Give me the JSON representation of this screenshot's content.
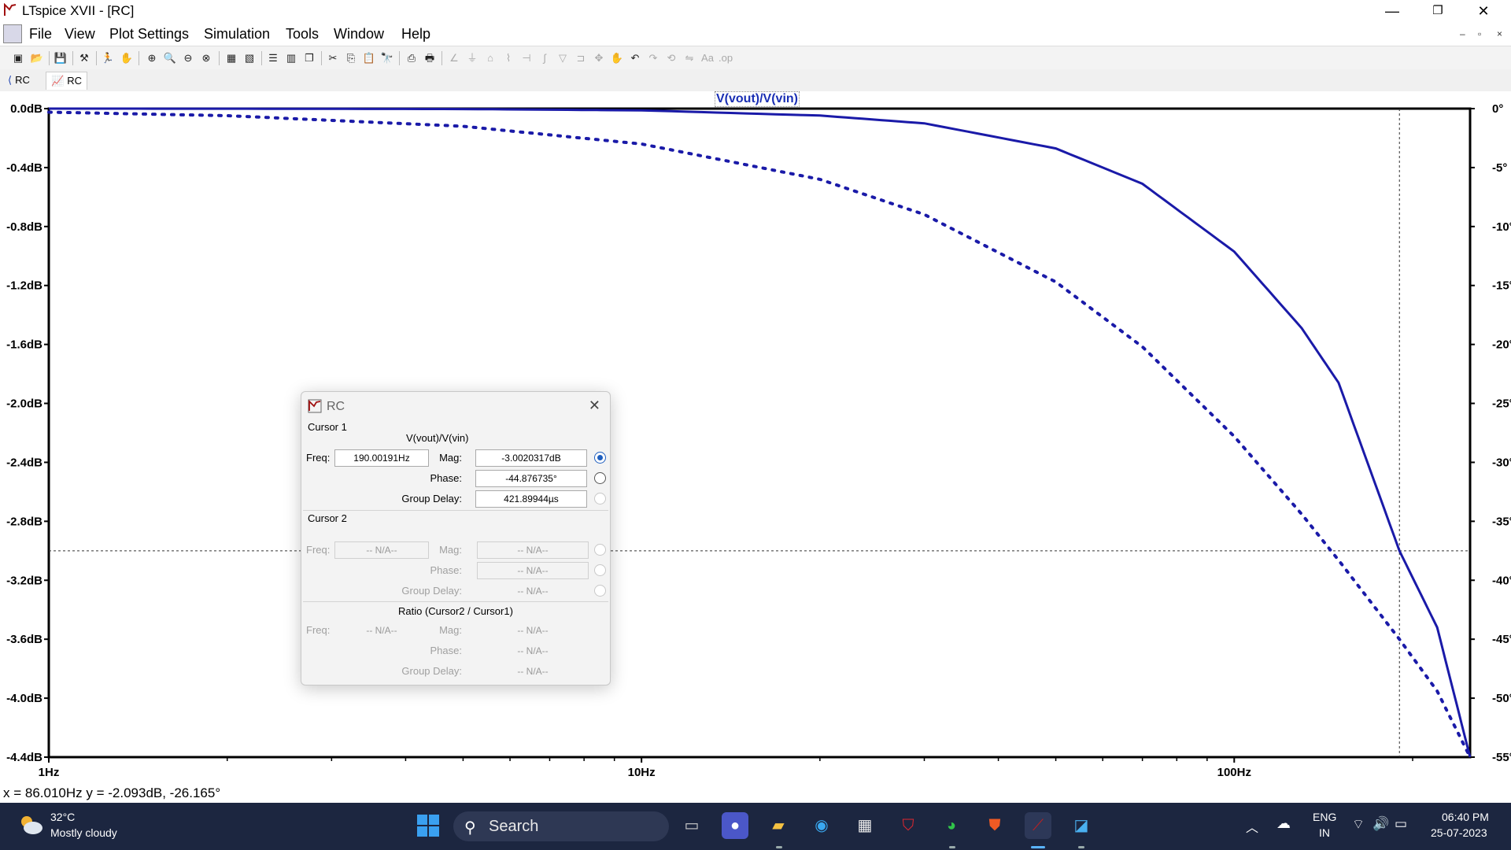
{
  "window": {
    "title": "LTspice XVII - [RC]",
    "minimize": "—",
    "restore": "❐",
    "close": "✕"
  },
  "menu": [
    "File",
    "View",
    "Plot Settings",
    "Simulation",
    "Tools",
    "Window",
    "Help"
  ],
  "tabs": [
    {
      "label": "RC",
      "kind": "schematic"
    },
    {
      "label": "RC",
      "kind": "waveform"
    }
  ],
  "chart_data": {
    "type": "line",
    "title": "V(vout)/V(vin)",
    "x_scale": "log",
    "xlim": [
      1,
      250
    ],
    "x_ticks": [
      "1Hz",
      "10Hz",
      "100Hz"
    ],
    "ylim_left": [
      -4.4,
      0.0
    ],
    "y_ticks_left": [
      "0.0dB",
      "-0.4dB",
      "-0.8dB",
      "-1.2dB",
      "-1.6dB",
      "-2.0dB",
      "-2.4dB",
      "-2.8dB",
      "-3.2dB",
      "-3.6dB",
      "-4.0dB",
      "-4.4dB"
    ],
    "ylim_right": [
      -55,
      0
    ],
    "y_ticks_right": [
      "0°",
      "-5°",
      "-10°",
      "-15°",
      "-20°",
      "-25°",
      "-30°",
      "-35°",
      "-40°",
      "-45°",
      "-50°",
      "-55°"
    ],
    "series": [
      {
        "style": "solid",
        "axis": "left",
        "color": "#1a1aa8",
        "x": [
          1,
          2,
          5,
          10,
          20,
          30,
          50,
          70,
          100,
          130,
          150,
          190,
          220,
          250
        ],
        "y": [
          0.0,
          -0.0005,
          -0.003,
          -0.012,
          -0.047,
          -0.1,
          -0.27,
          -0.51,
          -0.97,
          -1.49,
          -1.86,
          -3.0,
          -3.52,
          -4.4
        ]
      },
      {
        "style": "dotted",
        "axis": "right",
        "color": "#1a1aa8",
        "x": [
          1,
          2,
          5,
          10,
          20,
          30,
          50,
          70,
          100,
          130,
          150,
          190,
          220,
          250
        ],
        "y": [
          -0.3,
          -0.6,
          -1.5,
          -3.0,
          -6.0,
          -8.98,
          -14.7,
          -20.2,
          -27.8,
          -34.4,
          -38.3,
          -45.0,
          -49.4,
          -55.0
        ]
      }
    ],
    "cursor": {
      "x": 190.00191,
      "y": -3.0
    },
    "grid": false
  },
  "status": "x = 86.010Hz    y = -2.093dB, -26.165°",
  "dialog": {
    "title": "RC",
    "cursor1": "Cursor 1",
    "trace": "V(vout)/V(vin)",
    "freq_label": "Freq:",
    "mag_label": "Mag:",
    "phase_label": "Phase:",
    "gd_label": "Group Delay:",
    "freq1": "190.00191Hz",
    "mag1": "-3.0020317dB",
    "phase1": "-44.876735°",
    "gd1": "421.89944µs",
    "cursor2": "Cursor 2",
    "na": "-- N/A--",
    "ratio": "Ratio (Cursor2 / Cursor1)"
  },
  "taskbar": {
    "temp": "32°C",
    "weather": "Mostly cloudy",
    "search": "Search",
    "lang1": "ENG",
    "lang2": "IN",
    "time": "06:40 PM",
    "date": "25-07-2023"
  }
}
